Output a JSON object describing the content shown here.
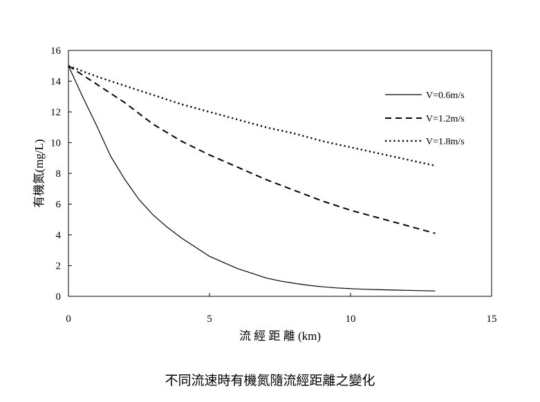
{
  "chart_data": {
    "type": "line",
    "xlabel": "流 經 距 離 (km)",
    "ylabel": "有機氮(mg/L)",
    "xlim": [
      0,
      15
    ],
    "ylim": [
      0,
      16
    ],
    "xticks": [
      0,
      5,
      10,
      15
    ],
    "yticks": [
      0,
      2,
      4,
      6,
      8,
      10,
      12,
      14,
      16
    ],
    "grid": false,
    "legend_position": "top-right",
    "series": [
      {
        "name": "V=0.6m/s",
        "style": "solid",
        "x": [
          0,
          0.5,
          1,
          1.5,
          2,
          2.5,
          3,
          3.5,
          4,
          4.5,
          5,
          5.5,
          6,
          6.5,
          7,
          7.5,
          8,
          8.5,
          9,
          9.5,
          10,
          10.5,
          11,
          11.5,
          12,
          12.5,
          13
        ],
        "y": [
          15,
          13.0,
          11.1,
          9.1,
          7.6,
          6.3,
          5.3,
          4.5,
          3.8,
          3.2,
          2.6,
          2.2,
          1.8,
          1.5,
          1.2,
          1.0,
          0.85,
          0.72,
          0.62,
          0.55,
          0.5,
          0.46,
          0.43,
          0.41,
          0.39,
          0.37,
          0.35
        ]
      },
      {
        "name": "V=1.2m/s",
        "style": "dashed",
        "x": [
          0,
          1,
          2,
          3,
          4,
          5,
          6,
          7,
          8,
          9,
          10,
          11,
          12,
          13
        ],
        "y": [
          15,
          13.8,
          12.6,
          11.2,
          10.1,
          9.2,
          8.4,
          7.6,
          6.9,
          6.2,
          5.6,
          5.1,
          4.6,
          4.1
        ]
      },
      {
        "name": "V=1.8m/s",
        "style": "dotted",
        "x": [
          0,
          1,
          2,
          3,
          4,
          5,
          6,
          7,
          8,
          9,
          10,
          11,
          12,
          13
        ],
        "y": [
          15,
          14.3,
          13.7,
          13.1,
          12.5,
          12.0,
          11.5,
          11.0,
          10.6,
          10.1,
          9.7,
          9.3,
          8.9,
          8.5
        ]
      }
    ]
  },
  "caption": "不同流速時有機氮隨流經距離之變化"
}
